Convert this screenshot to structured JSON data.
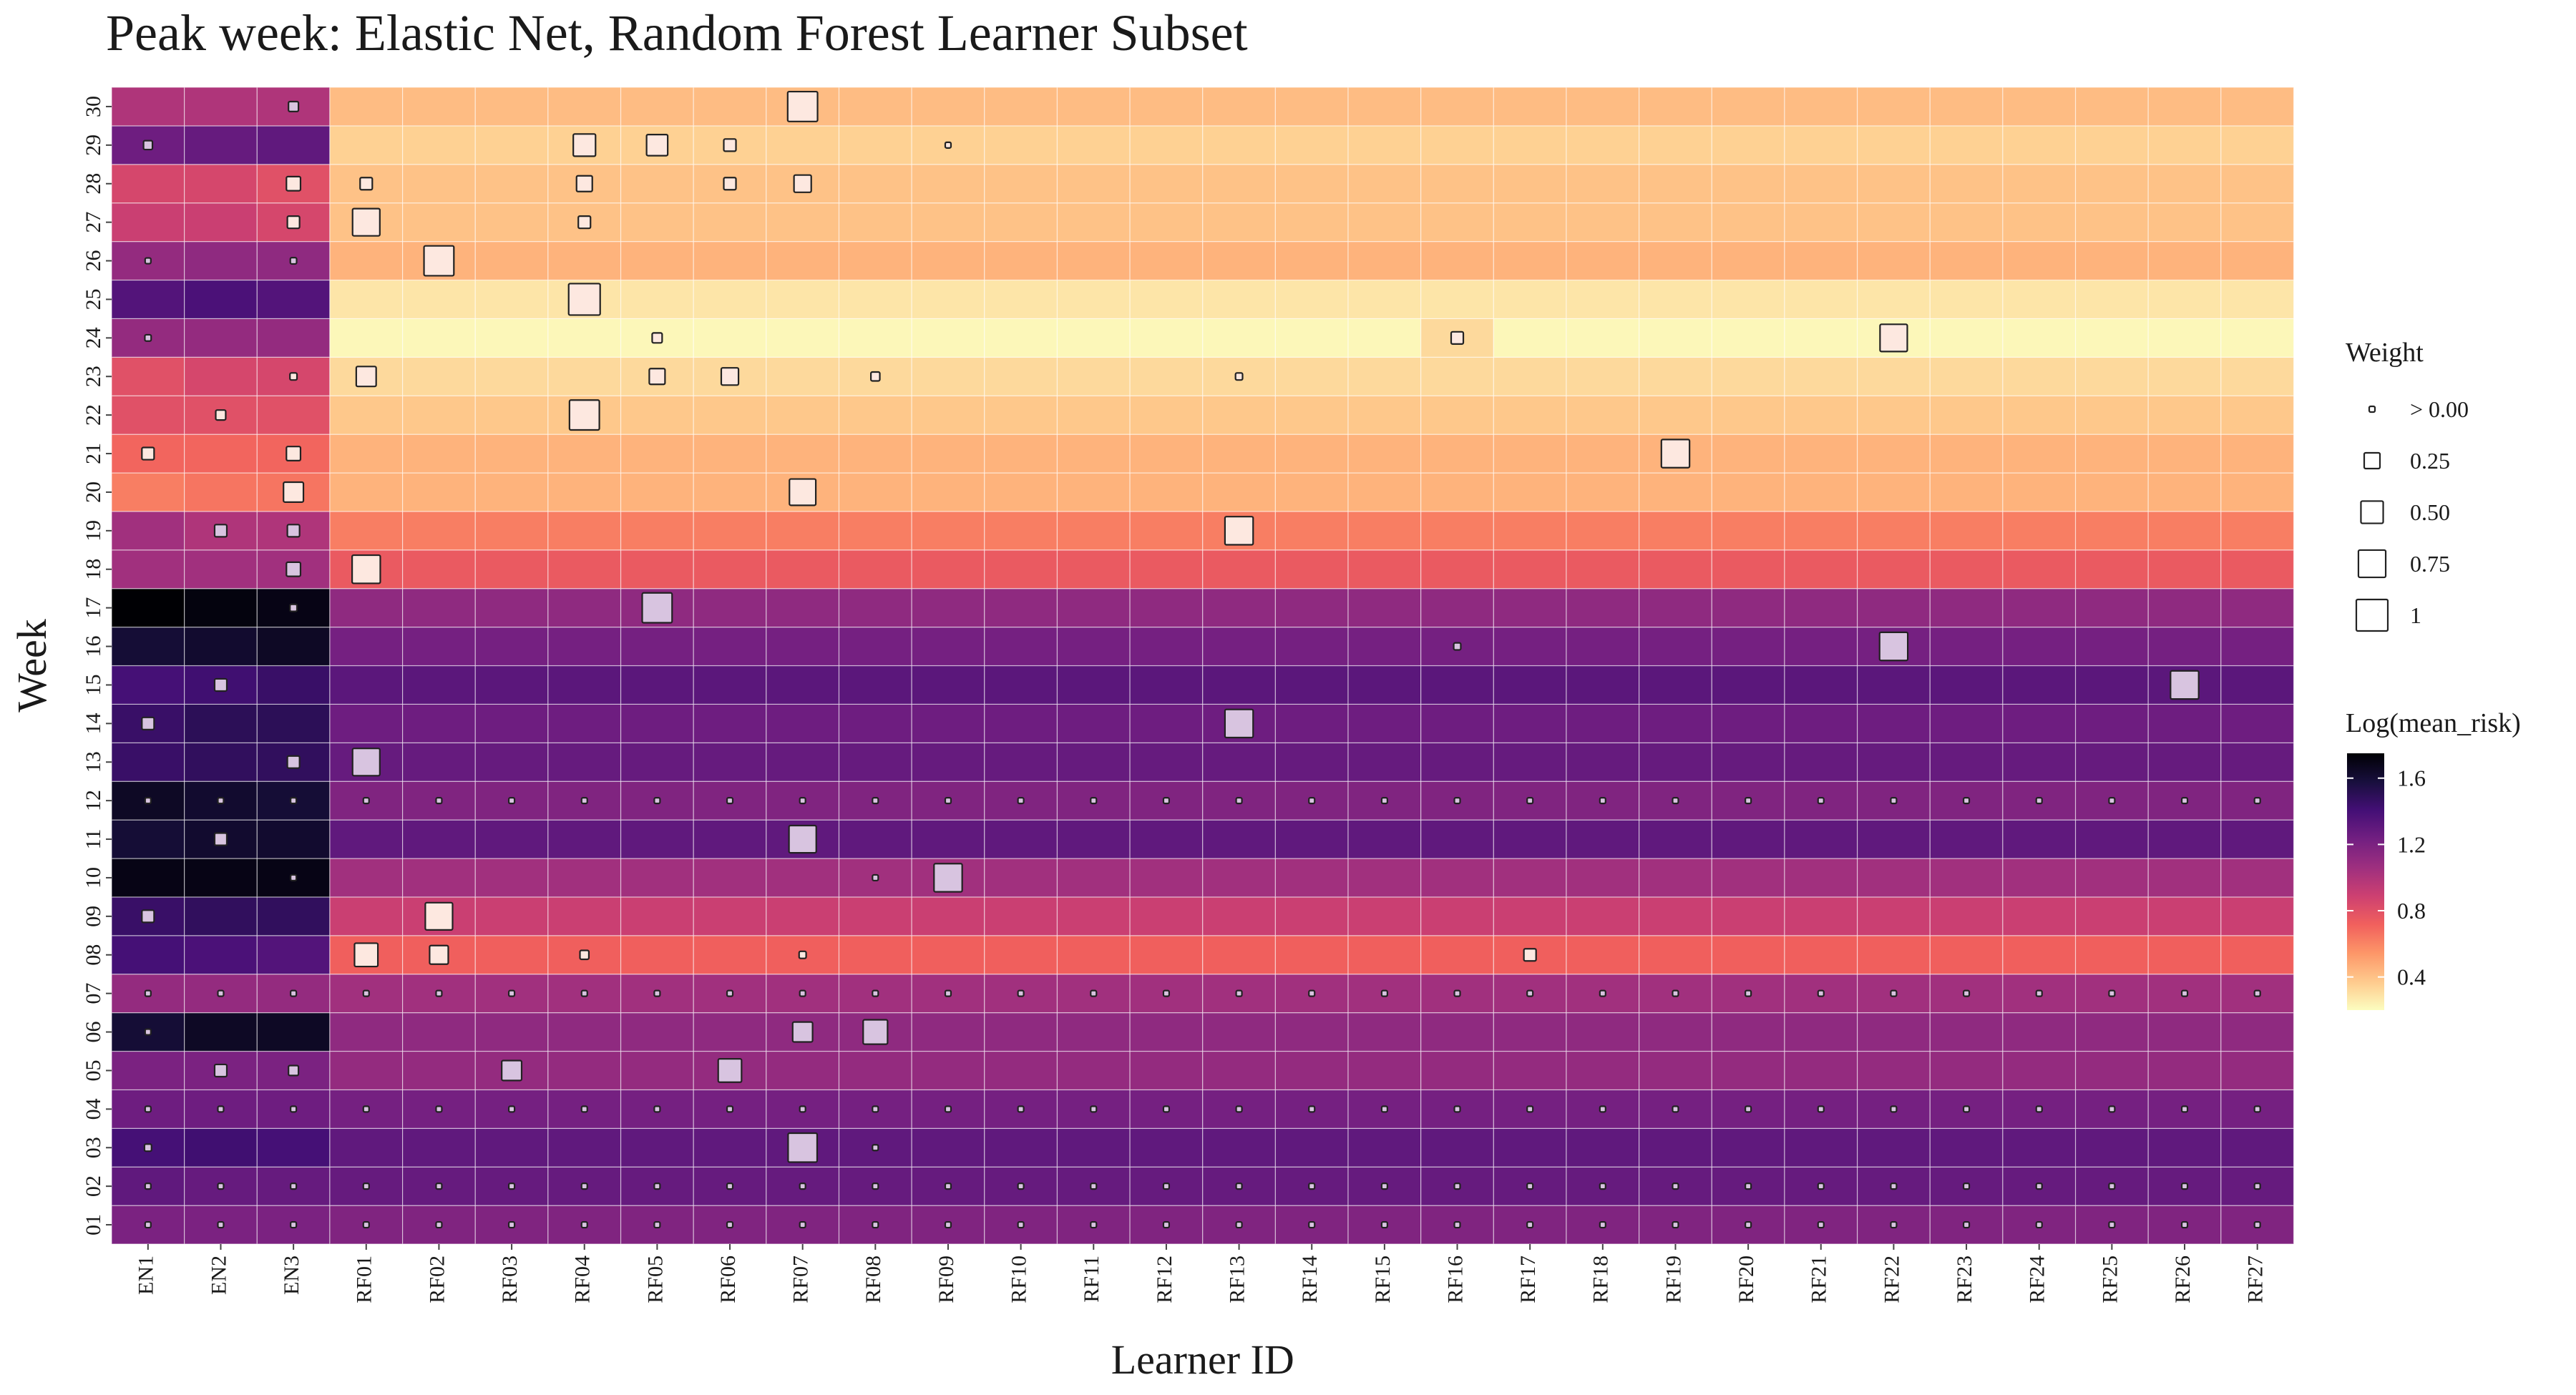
{
  "chart_data": {
    "type": "heatmap",
    "title": "Peak week: Elastic Net, Random Forest Learner Subset",
    "xlabel": "Learner ID",
    "ylabel": "Week",
    "x": [
      "EN1",
      "EN2",
      "EN3",
      "RF01",
      "RF02",
      "RF03",
      "RF04",
      "RF05",
      "RF06",
      "RF07",
      "RF08",
      "RF09",
      "RF10",
      "RF11",
      "RF12",
      "RF13",
      "RF14",
      "RF15",
      "RF16",
      "RF17",
      "RF18",
      "RF19",
      "RF20",
      "RF21",
      "RF22",
      "RF23",
      "RF24",
      "RF25",
      "RF26",
      "RF27"
    ],
    "y": [
      "01",
      "02",
      "03",
      "04",
      "05",
      "06",
      "07",
      "08",
      "09",
      "10",
      "11",
      "12",
      "13",
      "14",
      "15",
      "16",
      "17",
      "18",
      "19",
      "20",
      "21",
      "22",
      "23",
      "24",
      "25",
      "26",
      "27",
      "28",
      "29",
      "30"
    ],
    "row_values": {
      "01": {
        "EN": [
          1.2,
          1.2,
          1.2
        ],
        "RF": 1.18
      },
      "02": {
        "EN": [
          1.3,
          1.28,
          1.28
        ],
        "RF": 1.28
      },
      "03": {
        "EN": [
          1.4,
          1.42,
          1.4
        ],
        "RF": 1.3
      },
      "04": {
        "EN": [
          1.25,
          1.25,
          1.25
        ],
        "RF": 1.22
      },
      "05": {
        "EN": [
          1.2,
          1.2,
          1.2
        ],
        "RF": 1.1
      },
      "06": {
        "EN": [
          1.6,
          1.65,
          1.65
        ],
        "RF": 1.12
      },
      "07": {
        "EN": [
          1.1,
          1.1,
          1.1
        ],
        "RF": 1.05
      },
      "08": {
        "EN": [
          1.4,
          1.38,
          1.35
        ],
        "RF": 0.72
      },
      "09": {
        "EN": [
          1.45,
          1.48,
          1.48
        ],
        "RF": 0.9
      },
      "10": {
        "EN": [
          1.7,
          1.7,
          1.7
        ],
        "RF": 1.05
      },
      "11": {
        "EN": [
          1.6,
          1.62,
          1.62
        ],
        "RF": 1.3
      },
      "12": {
        "EN": [
          1.65,
          1.62,
          1.6
        ],
        "RF": 1.18
      },
      "13": {
        "EN": [
          1.45,
          1.48,
          1.48
        ],
        "RF": 1.28
      },
      "14": {
        "EN": [
          1.45,
          1.5,
          1.5
        ],
        "RF": 1.25
      },
      "15": {
        "EN": [
          1.4,
          1.42,
          1.45
        ],
        "RF": 1.32
      },
      "16": {
        "EN": [
          1.6,
          1.62,
          1.65
        ],
        "RF": 1.22
      },
      "17": {
        "EN": [
          1.75,
          1.72,
          1.7
        ],
        "RF": 1.12
      },
      "18": {
        "EN": [
          1.05,
          1.05,
          1.05
        ],
        "RF": 0.75
      },
      "19": {
        "EN": [
          1.05,
          1.0,
          1.0
        ],
        "RF": 0.62
      },
      "20": {
        "EN": [
          0.62,
          0.65,
          0.65
        ],
        "RF": 0.45
      },
      "21": {
        "EN": [
          0.7,
          0.7,
          0.7
        ],
        "RF": 0.45
      },
      "22": {
        "EN": [
          0.8,
          0.8,
          0.8
        ],
        "RF": 0.38
      },
      "23": {
        "EN": [
          0.8,
          0.85,
          0.85
        ],
        "RF": 0.32
      },
      "24": {
        "EN": [
          1.1,
          1.1,
          1.1
        ],
        "RF": 0.22
      },
      "25": {
        "EN": [
          1.35,
          1.38,
          1.35
        ],
        "RF": 0.28
      },
      "26": {
        "EN": [
          1.1,
          1.12,
          1.12
        ],
        "RF": 0.45
      },
      "27": {
        "EN": [
          0.9,
          0.9,
          0.85
        ],
        "RF": 0.4
      },
      "28": {
        "EN": [
          0.85,
          0.85,
          0.8
        ],
        "RF": 0.4
      },
      "29": {
        "EN": [
          1.25,
          1.28,
          1.3
        ],
        "RF": 0.35
      },
      "30": {
        "EN": [
          1.0,
          1.0,
          1.0
        ],
        "RF": 0.42
      }
    },
    "row_overrides": {
      "24": {
        "RF16": 0.32
      }
    },
    "weights": [
      {
        "week": "30",
        "learner": "EN3",
        "weight": 0.1
      },
      {
        "week": "30",
        "learner": "RF07",
        "weight": 0.9
      },
      {
        "week": "29",
        "learner": "EN1",
        "weight": 0.08
      },
      {
        "week": "29",
        "learner": "RF04",
        "weight": 0.5
      },
      {
        "week": "29",
        "learner": "RF05",
        "weight": 0.45
      },
      {
        "week": "29",
        "learner": "RF06",
        "weight": 0.15
      },
      {
        "week": "29",
        "learner": "RF09",
        "weight": 0.02
      },
      {
        "week": "28",
        "learner": "EN3",
        "weight": 0.2
      },
      {
        "week": "28",
        "learner": "RF01",
        "weight": 0.15
      },
      {
        "week": "28",
        "learner": "RF04",
        "weight": 0.25
      },
      {
        "week": "28",
        "learner": "RF06",
        "weight": 0.15
      },
      {
        "week": "28",
        "learner": "RF07",
        "weight": 0.3
      },
      {
        "week": "27",
        "learner": "EN3",
        "weight": 0.15
      },
      {
        "week": "27",
        "learner": "RF01",
        "weight": 0.75
      },
      {
        "week": "27",
        "learner": "RF04",
        "weight": 0.15
      },
      {
        "week": "26",
        "learner": "EN1",
        "weight": 0.03
      },
      {
        "week": "26",
        "learner": "EN3",
        "weight": 0.04
      },
      {
        "week": "26",
        "learner": "RF02",
        "weight": 0.9
      },
      {
        "week": "25",
        "learner": "RF04",
        "weight": 1.0
      },
      {
        "week": "24",
        "learner": "EN1",
        "weight": 0.04
      },
      {
        "week": "24",
        "learner": "RF05",
        "weight": 0.1
      },
      {
        "week": "24",
        "learner": "RF16",
        "weight": 0.15
      },
      {
        "week": "24",
        "learner": "RF22",
        "weight": 0.75
      },
      {
        "week": "23",
        "learner": "EN3",
        "weight": 0.05
      },
      {
        "week": "23",
        "learner": "RF01",
        "weight": 0.4
      },
      {
        "week": "23",
        "learner": "RF05",
        "weight": 0.25
      },
      {
        "week": "23",
        "learner": "RF06",
        "weight": 0.3
      },
      {
        "week": "23",
        "learner": "RF08",
        "weight": 0.08
      },
      {
        "week": "23",
        "learner": "RF13",
        "weight": 0.05
      },
      {
        "week": "22",
        "learner": "EN2",
        "weight": 0.1
      },
      {
        "week": "22",
        "learner": "RF04",
        "weight": 0.9
      },
      {
        "week": "21",
        "learner": "EN1",
        "weight": 0.15
      },
      {
        "week": "21",
        "learner": "EN3",
        "weight": 0.2
      },
      {
        "week": "21",
        "learner": "RF19",
        "weight": 0.8
      },
      {
        "week": "20",
        "learner": "EN3",
        "weight": 0.4
      },
      {
        "week": "20",
        "learner": "RF07",
        "weight": 0.7
      },
      {
        "week": "19",
        "learner": "EN2",
        "weight": 0.15
      },
      {
        "week": "19",
        "learner": "EN3",
        "weight": 0.15
      },
      {
        "week": "19",
        "learner": "RF13",
        "weight": 0.8
      },
      {
        "week": "18",
        "learner": "EN3",
        "weight": 0.2
      },
      {
        "week": "18",
        "learner": "RF01",
        "weight": 0.8
      },
      {
        "week": "17",
        "learner": "EN3",
        "weight": 0.05
      },
      {
        "week": "17",
        "learner": "RF05",
        "weight": 0.9
      },
      {
        "week": "16",
        "learner": "RF16",
        "weight": 0.05
      },
      {
        "week": "16",
        "learner": "RF22",
        "weight": 0.8
      },
      {
        "week": "15",
        "learner": "EN2",
        "weight": 0.15
      },
      {
        "week": "15",
        "learner": "RF26",
        "weight": 0.8
      },
      {
        "week": "14",
        "learner": "EN1",
        "weight": 0.15
      },
      {
        "week": "14",
        "learner": "RF13",
        "weight": 0.8
      },
      {
        "week": "13",
        "learner": "EN3",
        "weight": 0.15
      },
      {
        "week": "13",
        "learner": "RF01",
        "weight": 0.75
      },
      {
        "week": "12",
        "learner": "ALL",
        "weight": 0.03
      },
      {
        "week": "11",
        "learner": "EN2",
        "weight": 0.15
      },
      {
        "week": "11",
        "learner": "RF07",
        "weight": 0.75
      },
      {
        "week": "10",
        "learner": "EN3",
        "weight": 0.03
      },
      {
        "week": "10",
        "learner": "RF08",
        "weight": 0.03
      },
      {
        "week": "10",
        "learner": "RF09",
        "weight": 0.8
      },
      {
        "week": "09",
        "learner": "EN1",
        "weight": 0.15
      },
      {
        "week": "09",
        "learner": "RF02",
        "weight": 0.75
      },
      {
        "week": "08",
        "learner": "RF01",
        "weight": 0.55
      },
      {
        "week": "08",
        "learner": "RF02",
        "weight": 0.35
      },
      {
        "week": "08",
        "learner": "RF04",
        "weight": 0.08
      },
      {
        "week": "08",
        "learner": "RF07",
        "weight": 0.05
      },
      {
        "week": "08",
        "learner": "RF17",
        "weight": 0.15
      },
      {
        "week": "07",
        "learner": "ALL",
        "weight": 0.03
      },
      {
        "week": "06",
        "learner": "EN1",
        "weight": 0.03
      },
      {
        "week": "06",
        "learner": "RF07",
        "weight": 0.4
      },
      {
        "week": "06",
        "learner": "RF08",
        "weight": 0.6
      },
      {
        "week": "05",
        "learner": "EN2",
        "weight": 0.15
      },
      {
        "week": "05",
        "learner": "EN3",
        "weight": 0.1
      },
      {
        "week": "05",
        "learner": "RF03",
        "weight": 0.4
      },
      {
        "week": "05",
        "learner": "RF06",
        "weight": 0.55
      },
      {
        "week": "04",
        "learner": "ALL",
        "weight": 0.03
      },
      {
        "week": "03",
        "learner": "EN1",
        "weight": 0.05
      },
      {
        "week": "03",
        "learner": "RF07",
        "weight": 0.85
      },
      {
        "week": "03",
        "learner": "RF08",
        "weight": 0.01
      },
      {
        "week": "02",
        "learner": "ALL",
        "weight": 0.03
      },
      {
        "week": "01",
        "learner": "ALL",
        "weight": 0.03
      }
    ],
    "legend_weight": {
      "title": "Weight",
      "labels": [
        "> 0.00",
        "0.25",
        "0.50",
        "0.75",
        "1"
      ],
      "values": [
        0.02,
        0.25,
        0.5,
        0.75,
        1.0
      ]
    },
    "legend_color": {
      "title": "Log(mean_risk)",
      "ticks": [
        {
          "v": 1.6,
          "label": "1.6"
        },
        {
          "v": 1.2,
          "label": "1.2"
        },
        {
          "v": 0.8,
          "label": "0.8"
        },
        {
          "v": 0.4,
          "label": "0.4"
        }
      ],
      "range": [
        0.2,
        1.75
      ],
      "palette": [
        "#fcfdbf",
        "#feca8d",
        "#fd9668",
        "#f1605d",
        "#cd4071",
        "#9e2f7f",
        "#721f81",
        "#440f76",
        "#180f3d",
        "#000004"
      ]
    },
    "grid": true,
    "legend_position": "right"
  }
}
